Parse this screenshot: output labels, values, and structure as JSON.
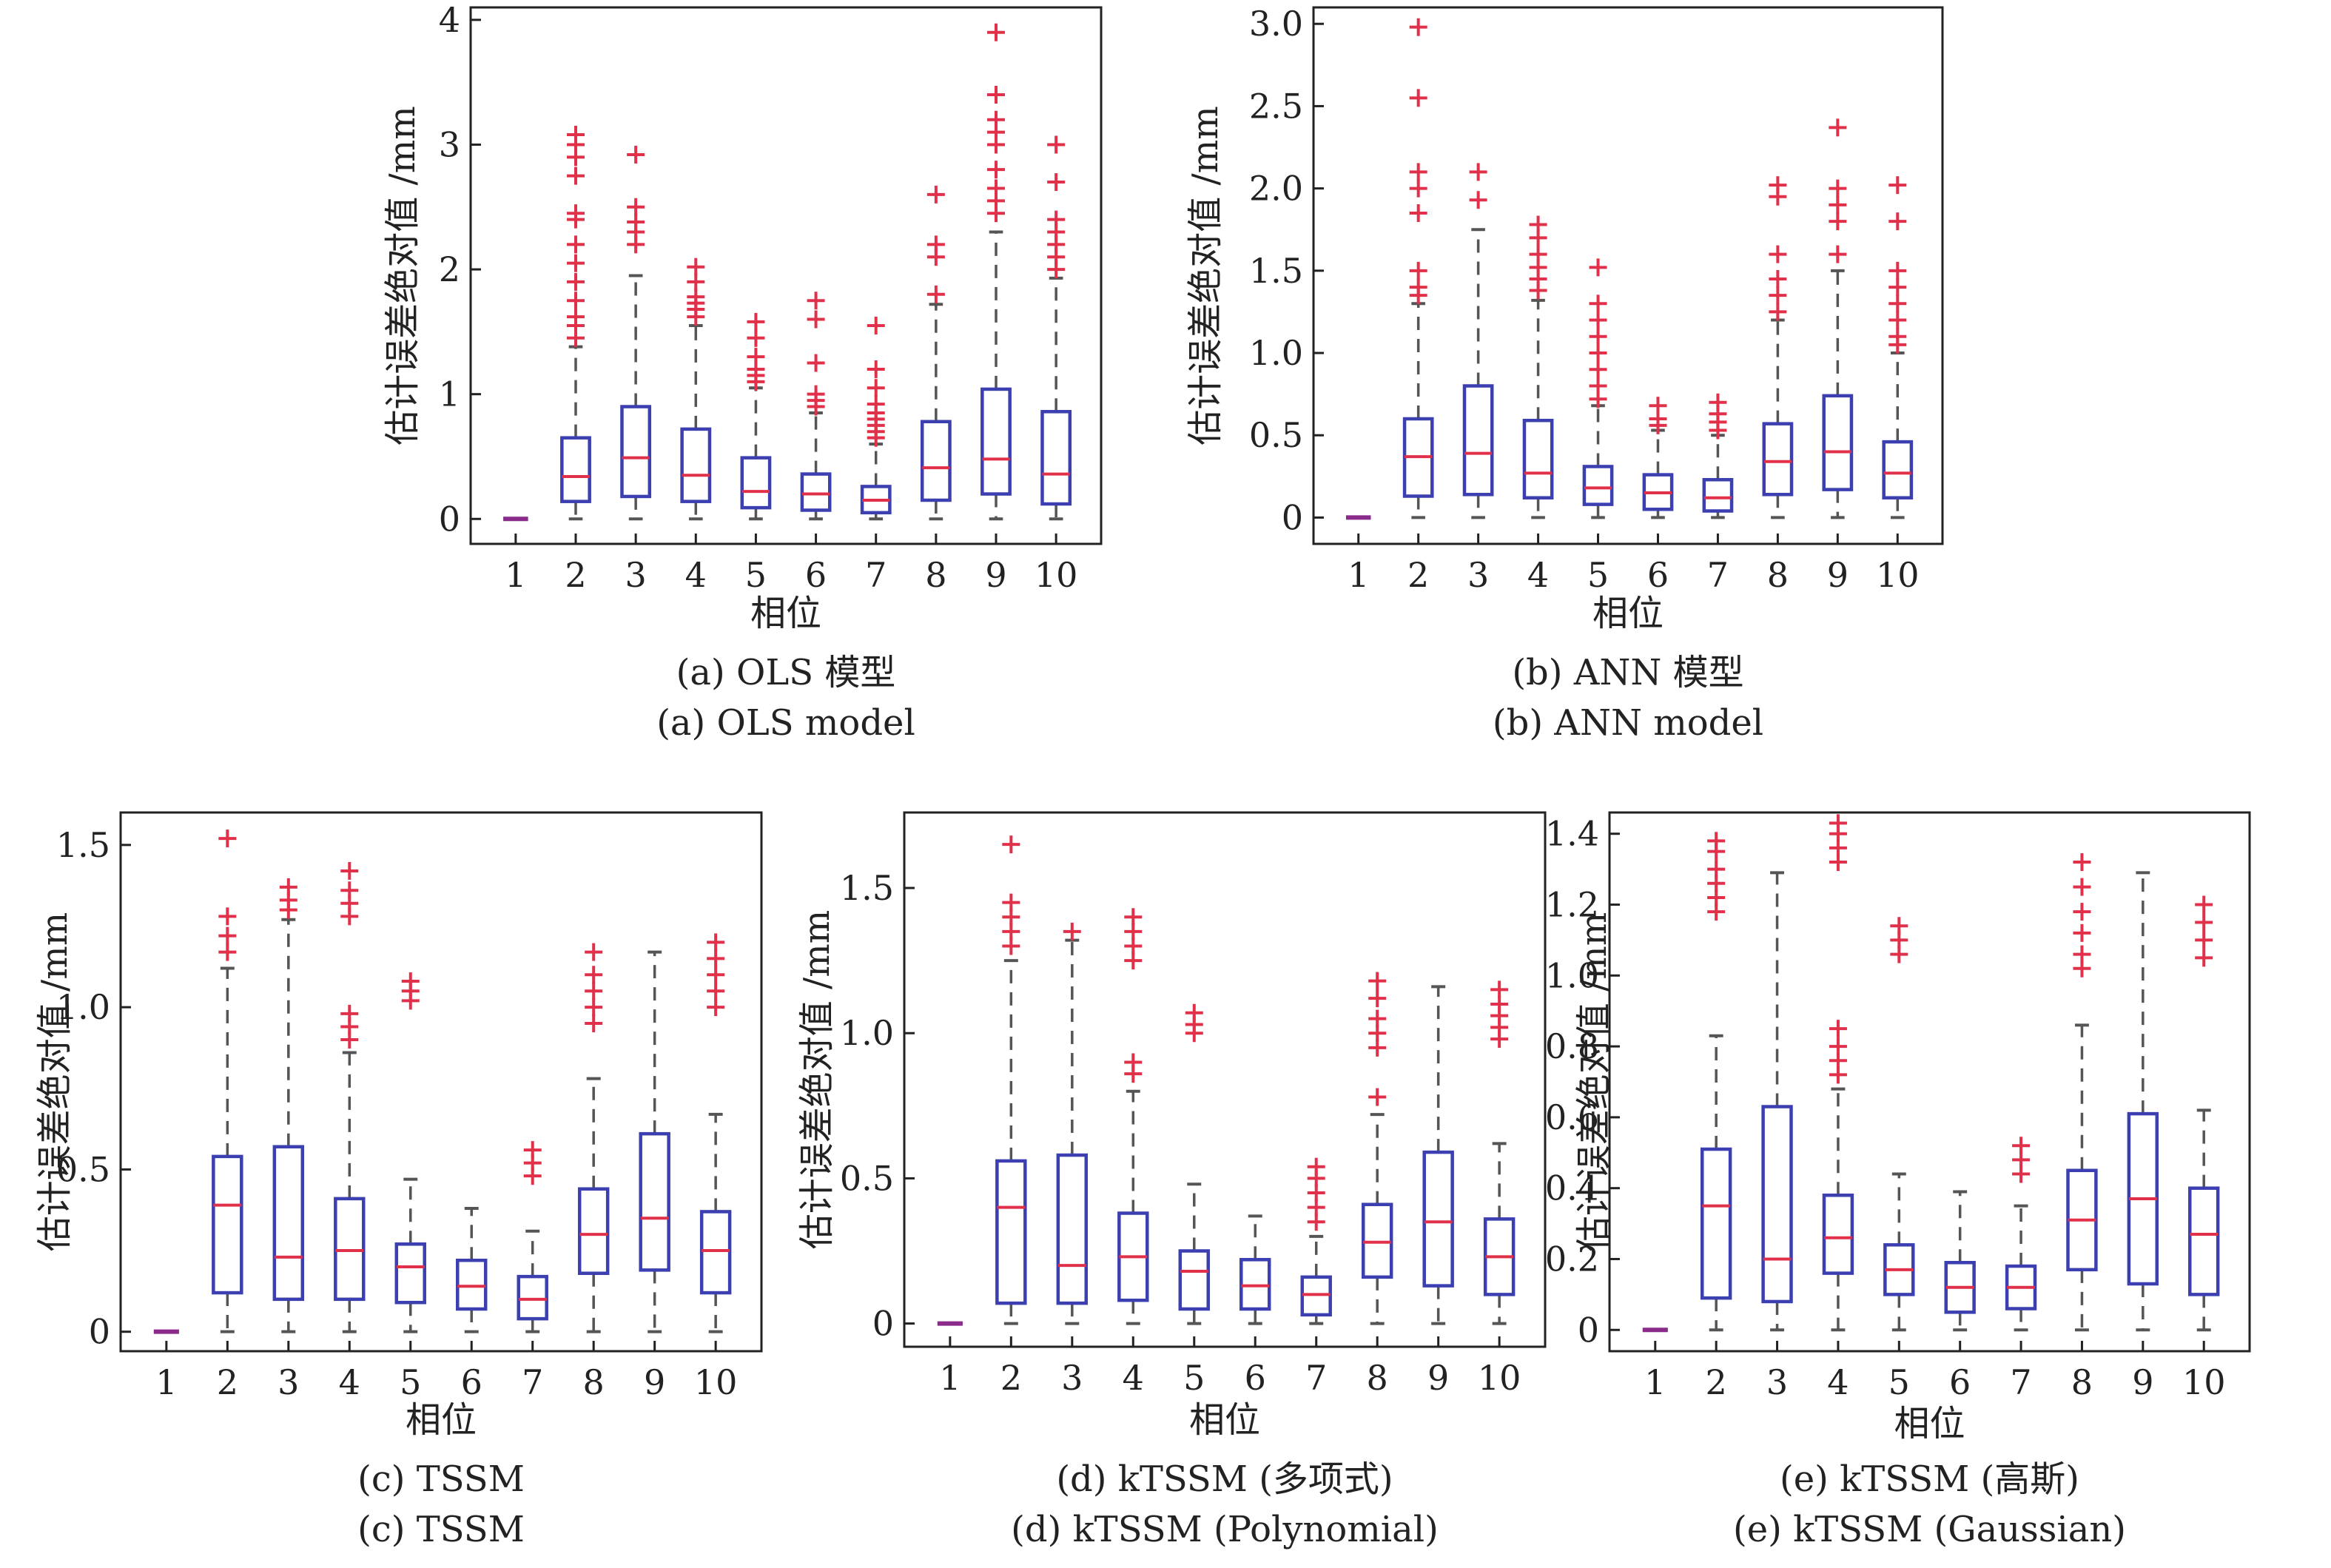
{
  "colors": {
    "box": "#3b3fb0",
    "median": "#e0304a",
    "whisker": "#555555",
    "outlier": "#e0304a",
    "frame": "#222222"
  },
  "chart_data": [
    {
      "type": "box",
      "ylabel": "估计误差绝对值 /mm",
      "xlabel": "相位",
      "caption_cn": "(a) OLS 模型",
      "caption_en": "(a) OLS model",
      "ylim": [
        -0.2,
        4.1
      ],
      "yticks": [
        0,
        1,
        2,
        3,
        4
      ],
      "ytick_labels": [
        "0",
        "1",
        "2",
        "3",
        "4"
      ],
      "categories": [
        "1",
        "2",
        "3",
        "4",
        "5",
        "6",
        "7",
        "8",
        "9",
        "10"
      ],
      "boxes": [
        {
          "whislo": 0,
          "q1": 0,
          "med": 0,
          "q3": 0,
          "whishi": 0,
          "fliers": []
        },
        {
          "whislo": 0,
          "q1": 0.14,
          "med": 0.34,
          "q3": 0.65,
          "whishi": 1.38,
          "fliers": [
            1.45,
            1.55,
            1.62,
            1.75,
            1.9,
            2.05,
            2.2,
            2.4,
            2.45,
            2.75,
            2.9,
            3.0,
            3.08
          ]
        },
        {
          "whislo": 0,
          "q1": 0.18,
          "med": 0.49,
          "q3": 0.9,
          "whishi": 1.95,
          "fliers": [
            2.2,
            2.3,
            2.38,
            2.5,
            2.92
          ]
        },
        {
          "whislo": 0,
          "q1": 0.14,
          "med": 0.35,
          "q3": 0.72,
          "whishi": 1.55,
          "fliers": [
            1.62,
            1.68,
            1.73,
            1.78,
            1.9,
            2.02
          ]
        },
        {
          "whislo": 0,
          "q1": 0.09,
          "med": 0.22,
          "q3": 0.49,
          "whishi": 1.05,
          "fliers": [
            1.1,
            1.15,
            1.2,
            1.3,
            1.45,
            1.58
          ]
        },
        {
          "whislo": 0,
          "q1": 0.07,
          "med": 0.2,
          "q3": 0.36,
          "whishi": 0.85,
          "fliers": [
            0.9,
            0.95,
            1.0,
            1.25,
            1.6,
            1.75
          ]
        },
        {
          "whislo": 0,
          "q1": 0.05,
          "med": 0.15,
          "q3": 0.26,
          "whishi": 0.6,
          "fliers": [
            0.65,
            0.7,
            0.75,
            0.8,
            0.85,
            0.92,
            1.05,
            1.2,
            1.55
          ]
        },
        {
          "whislo": 0,
          "q1": 0.15,
          "med": 0.41,
          "q3": 0.78,
          "whishi": 1.72,
          "fliers": [
            1.8,
            2.1,
            2.2,
            2.6
          ]
        },
        {
          "whislo": 0,
          "q1": 0.2,
          "med": 0.48,
          "q3": 1.04,
          "whishi": 2.3,
          "fliers": [
            2.45,
            2.55,
            2.65,
            2.8,
            3.0,
            3.1,
            3.2,
            3.4,
            3.9
          ]
        },
        {
          "whislo": 0,
          "q1": 0.12,
          "med": 0.36,
          "q3": 0.86,
          "whishi": 1.93,
          "fliers": [
            2.0,
            2.1,
            2.2,
            2.3,
            2.4,
            2.7,
            3.0
          ]
        }
      ]
    },
    {
      "type": "box",
      "ylabel": "估计误差绝对值 /mm",
      "xlabel": "相位",
      "caption_cn": "(b) ANN 模型",
      "caption_en": "(b) ANN model",
      "ylim": [
        -0.16,
        3.1
      ],
      "yticks": [
        0,
        0.5,
        1.0,
        1.5,
        2.0,
        2.5,
        3.0
      ],
      "ytick_labels": [
        "0",
        "0.5",
        "1.0",
        "1.5",
        "2.0",
        "2.5",
        "3.0"
      ],
      "categories": [
        "1",
        "2",
        "3",
        "4",
        "5",
        "6",
        "7",
        "8",
        "9",
        "10"
      ],
      "boxes": [
        {
          "whislo": 0,
          "q1": 0,
          "med": 0,
          "q3": 0,
          "whishi": 0,
          "fliers": []
        },
        {
          "whislo": 0,
          "q1": 0.13,
          "med": 0.37,
          "q3": 0.6,
          "whishi": 1.3,
          "fliers": [
            1.35,
            1.4,
            1.5,
            1.85,
            2.0,
            2.1,
            2.55,
            2.98
          ]
        },
        {
          "whislo": 0,
          "q1": 0.14,
          "med": 0.39,
          "q3": 0.8,
          "whishi": 1.75,
          "fliers": [
            1.93,
            2.1
          ]
        },
        {
          "whislo": 0,
          "q1": 0.12,
          "med": 0.27,
          "q3": 0.59,
          "whishi": 1.32,
          "fliers": [
            1.38,
            1.45,
            1.52,
            1.6,
            1.7,
            1.78
          ]
        },
        {
          "whislo": 0,
          "q1": 0.08,
          "med": 0.18,
          "q3": 0.31,
          "whishi": 0.68,
          "fliers": [
            0.72,
            0.8,
            0.9,
            1.0,
            1.1,
            1.2,
            1.3,
            1.52
          ]
        },
        {
          "whislo": 0,
          "q1": 0.05,
          "med": 0.15,
          "q3": 0.26,
          "whishi": 0.53,
          "fliers": [
            0.56,
            0.6,
            0.68
          ]
        },
        {
          "whislo": 0,
          "q1": 0.04,
          "med": 0.12,
          "q3": 0.23,
          "whishi": 0.5,
          "fliers": [
            0.53,
            0.58,
            0.63,
            0.7
          ]
        },
        {
          "whislo": 0,
          "q1": 0.14,
          "med": 0.34,
          "q3": 0.57,
          "whishi": 1.2,
          "fliers": [
            1.25,
            1.35,
            1.45,
            1.6,
            1.95,
            2.02
          ]
        },
        {
          "whislo": 0,
          "q1": 0.17,
          "med": 0.4,
          "q3": 0.74,
          "whishi": 1.5,
          "fliers": [
            1.6,
            1.8,
            1.9,
            2.0,
            2.37
          ]
        },
        {
          "whislo": 0,
          "q1": 0.12,
          "med": 0.27,
          "q3": 0.46,
          "whishi": 1.0,
          "fliers": [
            1.05,
            1.1,
            1.2,
            1.3,
            1.4,
            1.5,
            1.8,
            2.02
          ]
        }
      ]
    },
    {
      "type": "box",
      "ylabel": "估计误差绝对值 /mm",
      "xlabel": "相位",
      "caption_cn": "(c) TSSM",
      "caption_en": "(c) TSSM",
      "ylim": [
        -0.06,
        1.6
      ],
      "yticks": [
        0,
        0.5,
        1.0,
        1.5
      ],
      "ytick_labels": [
        "0",
        "0.5",
        "1.0",
        "1.5"
      ],
      "categories": [
        "1",
        "2",
        "3",
        "4",
        "5",
        "6",
        "7",
        "8",
        "9",
        "10"
      ],
      "boxes": [
        {
          "whislo": 0,
          "q1": 0,
          "med": 0,
          "q3": 0,
          "whishi": 0,
          "fliers": []
        },
        {
          "whislo": 0,
          "q1": 0.12,
          "med": 0.39,
          "q3": 0.54,
          "whishi": 1.12,
          "fliers": [
            1.17,
            1.22,
            1.28,
            1.52
          ]
        },
        {
          "whislo": 0,
          "q1": 0.1,
          "med": 0.23,
          "q3": 0.57,
          "whishi": 1.27,
          "fliers": [
            1.3,
            1.33,
            1.37
          ]
        },
        {
          "whislo": 0,
          "q1": 0.1,
          "med": 0.25,
          "q3": 0.41,
          "whishi": 0.86,
          "fliers": [
            0.9,
            0.94,
            0.98,
            1.28,
            1.32,
            1.36,
            1.42
          ]
        },
        {
          "whislo": 0,
          "q1": 0.09,
          "med": 0.2,
          "q3": 0.27,
          "whishi": 0.47,
          "fliers": [
            1.02,
            1.05,
            1.08
          ]
        },
        {
          "whislo": 0,
          "q1": 0.07,
          "med": 0.14,
          "q3": 0.22,
          "whishi": 0.38,
          "fliers": []
        },
        {
          "whislo": 0,
          "q1": 0.04,
          "med": 0.1,
          "q3": 0.17,
          "whishi": 0.31,
          "fliers": [
            0.48,
            0.52,
            0.56
          ]
        },
        {
          "whislo": 0,
          "q1": 0.18,
          "med": 0.3,
          "q3": 0.44,
          "whishi": 0.78,
          "fliers": [
            0.95,
            1.0,
            1.05,
            1.1,
            1.17
          ]
        },
        {
          "whislo": 0,
          "q1": 0.19,
          "med": 0.35,
          "q3": 0.61,
          "whishi": 1.17,
          "fliers": []
        },
        {
          "whislo": 0,
          "q1": 0.12,
          "med": 0.25,
          "q3": 0.37,
          "whishi": 0.67,
          "fliers": [
            1.0,
            1.05,
            1.1,
            1.15,
            1.2
          ]
        }
      ]
    },
    {
      "type": "box",
      "ylabel": "估计误差绝对值 /mm",
      "xlabel": "相位",
      "caption_cn": "(d) kTSSM (多项式)",
      "caption_en": "(d) kTSSM (Polynomial)",
      "ylim": [
        -0.08,
        1.76
      ],
      "yticks": [
        0,
        0.5,
        1.0,
        1.5
      ],
      "ytick_labels": [
        "0",
        "0.5",
        "1.0",
        "1.5"
      ],
      "categories": [
        "1",
        "2",
        "3",
        "4",
        "5",
        "6",
        "7",
        "8",
        "9",
        "10"
      ],
      "boxes": [
        {
          "whislo": 0,
          "q1": 0,
          "med": 0,
          "q3": 0,
          "whishi": 0,
          "fliers": []
        },
        {
          "whislo": 0,
          "q1": 0.07,
          "med": 0.4,
          "q3": 0.56,
          "whishi": 1.25,
          "fliers": [
            1.3,
            1.35,
            1.4,
            1.45,
            1.65
          ]
        },
        {
          "whislo": 0,
          "q1": 0.07,
          "med": 0.2,
          "q3": 0.58,
          "whishi": 1.32,
          "fliers": [
            1.35
          ]
        },
        {
          "whislo": 0,
          "q1": 0.08,
          "med": 0.23,
          "q3": 0.38,
          "whishi": 0.8,
          "fliers": [
            0.86,
            0.9,
            1.25,
            1.3,
            1.35,
            1.4
          ]
        },
        {
          "whislo": 0,
          "q1": 0.05,
          "med": 0.18,
          "q3": 0.25,
          "whishi": 0.48,
          "fliers": [
            1.0,
            1.03,
            1.07
          ]
        },
        {
          "whislo": 0,
          "q1": 0.05,
          "med": 0.13,
          "q3": 0.22,
          "whishi": 0.37,
          "fliers": []
        },
        {
          "whislo": 0,
          "q1": 0.03,
          "med": 0.1,
          "q3": 0.16,
          "whishi": 0.3,
          "fliers": [
            0.35,
            0.4,
            0.45,
            0.5,
            0.54
          ]
        },
        {
          "whislo": 0,
          "q1": 0.16,
          "med": 0.28,
          "q3": 0.41,
          "whishi": 0.72,
          "fliers": [
            0.78,
            0.95,
            1.0,
            1.05,
            1.12,
            1.18
          ]
        },
        {
          "whislo": 0,
          "q1": 0.13,
          "med": 0.35,
          "q3": 0.59,
          "whishi": 1.16,
          "fliers": []
        },
        {
          "whislo": 0,
          "q1": 0.1,
          "med": 0.23,
          "q3": 0.36,
          "whishi": 0.62,
          "fliers": [
            0.98,
            1.02,
            1.06,
            1.1,
            1.15
          ]
        }
      ]
    },
    {
      "type": "box",
      "ylabel": "估计误差绝对值 /mm",
      "xlabel": "相位",
      "caption_cn": "(e) kTSSM (高斯)",
      "caption_en": "(e) kTSSM (Gaussian)",
      "ylim": [
        -0.06,
        1.46
      ],
      "yticks": [
        0,
        0.2,
        0.4,
        0.6,
        0.8,
        1.0,
        1.2,
        1.4
      ],
      "ytick_labels": [
        "0",
        "0.2",
        "0.4",
        "0.6",
        "0.8",
        "1.0",
        "1.2",
        "1.4"
      ],
      "categories": [
        "1",
        "2",
        "3",
        "4",
        "5",
        "6",
        "7",
        "8",
        "9",
        "10"
      ],
      "boxes": [
        {
          "whislo": 0,
          "q1": 0,
          "med": 0,
          "q3": 0,
          "whishi": 0,
          "fliers": []
        },
        {
          "whislo": 0,
          "q1": 0.09,
          "med": 0.35,
          "q3": 0.51,
          "whishi": 0.83,
          "fliers": [
            1.18,
            1.22,
            1.26,
            1.3,
            1.35,
            1.38
          ]
        },
        {
          "whislo": 0,
          "q1": 0.08,
          "med": 0.2,
          "q3": 0.63,
          "whishi": 1.29,
          "fliers": []
        },
        {
          "whislo": 0,
          "q1": 0.16,
          "med": 0.26,
          "q3": 0.38,
          "whishi": 0.68,
          "fliers": [
            0.72,
            0.76,
            0.8,
            0.85,
            1.32,
            1.36,
            1.4,
            1.43
          ]
        },
        {
          "whislo": 0,
          "q1": 0.1,
          "med": 0.17,
          "q3": 0.24,
          "whishi": 0.44,
          "fliers": [
            1.06,
            1.1,
            1.14
          ]
        },
        {
          "whislo": 0,
          "q1": 0.05,
          "med": 0.12,
          "q3": 0.19,
          "whishi": 0.39,
          "fliers": []
        },
        {
          "whislo": 0,
          "q1": 0.06,
          "med": 0.12,
          "q3": 0.18,
          "whishi": 0.35,
          "fliers": [
            0.44,
            0.48,
            0.52
          ]
        },
        {
          "whislo": 0,
          "q1": 0.17,
          "med": 0.31,
          "q3": 0.45,
          "whishi": 0.86,
          "fliers": [
            1.02,
            1.06,
            1.12,
            1.18,
            1.25,
            1.32
          ]
        },
        {
          "whislo": 0,
          "q1": 0.13,
          "med": 0.37,
          "q3": 0.61,
          "whishi": 1.29,
          "fliers": []
        },
        {
          "whislo": 0,
          "q1": 0.1,
          "med": 0.27,
          "q3": 0.4,
          "whishi": 0.62,
          "fliers": [
            1.05,
            1.1,
            1.15,
            1.2
          ]
        }
      ]
    }
  ]
}
